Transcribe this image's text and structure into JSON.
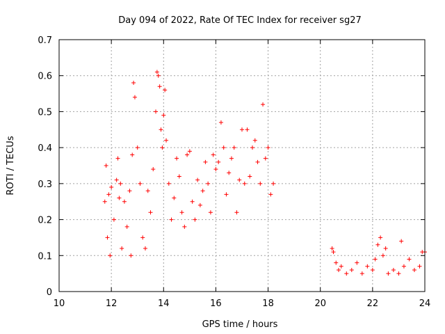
{
  "chart_data": {
    "type": "scatter",
    "title": "Day 094 of 2022, Rate Of TEC Index for receiver sg27",
    "xlabel": "GPS time / hours",
    "ylabel": "ROTI / TECUs",
    "xlim": [
      10,
      24
    ],
    "ylim": [
      0,
      0.7
    ],
    "x_ticks": [
      "10",
      "12",
      "14",
      "16",
      "18",
      "20",
      "22",
      "24"
    ],
    "y_ticks": [
      "0",
      "0.1",
      "0.2",
      "0.3",
      "0.4",
      "0.5",
      "0.6",
      "0.7"
    ],
    "grid": true,
    "marker": "plus",
    "color": "#ff0000",
    "series": [
      {
        "x": [
          11.75,
          11.8,
          11.85,
          11.9,
          11.95,
          12.0,
          12.1,
          12.2,
          12.25,
          12.3,
          12.35,
          12.4,
          12.5,
          12.6,
          12.7,
          12.75,
          12.8,
          12.85,
          12.9,
          13.0,
          13.1,
          13.2,
          13.3,
          13.4,
          13.5,
          13.6,
          13.7,
          13.75,
          13.8,
          13.85,
          13.9,
          13.95,
          14.0,
          14.05,
          14.1,
          14.2,
          14.3,
          14.4,
          14.5,
          14.6,
          14.7,
          14.8,
          14.9,
          15.0,
          15.1,
          15.2,
          15.3,
          15.4,
          15.5,
          15.6,
          15.7,
          15.8,
          15.9,
          16.0,
          16.1,
          16.2,
          16.3,
          16.4,
          16.5,
          16.6,
          16.7,
          16.8,
          16.9,
          17.0,
          17.1,
          17.2,
          17.3,
          17.4,
          17.5,
          17.6,
          17.7,
          17.8,
          17.9,
          18.0,
          18.1,
          18.2,
          20.45,
          20.5,
          20.6,
          20.7,
          20.8,
          21.0,
          21.2,
          21.4,
          21.6,
          21.8,
          22.0,
          22.1,
          22.2,
          22.3,
          22.4,
          22.5,
          22.6,
          22.8,
          23.0,
          23.1,
          23.2,
          23.4,
          23.6,
          23.8,
          23.9,
          24.0
        ],
        "y": [
          0.25,
          0.35,
          0.15,
          0.27,
          0.1,
          0.29,
          0.2,
          0.31,
          0.37,
          0.26,
          0.3,
          0.12,
          0.25,
          0.18,
          0.28,
          0.1,
          0.38,
          0.58,
          0.54,
          0.4,
          0.3,
          0.15,
          0.12,
          0.28,
          0.22,
          0.34,
          0.5,
          0.61,
          0.6,
          0.57,
          0.45,
          0.4,
          0.49,
          0.56,
          0.42,
          0.3,
          0.2,
          0.26,
          0.37,
          0.32,
          0.22,
          0.18,
          0.38,
          0.39,
          0.25,
          0.2,
          0.31,
          0.24,
          0.28,
          0.36,
          0.3,
          0.22,
          0.38,
          0.34,
          0.36,
          0.47,
          0.4,
          0.27,
          0.33,
          0.37,
          0.4,
          0.22,
          0.31,
          0.45,
          0.3,
          0.45,
          0.32,
          0.4,
          0.42,
          0.36,
          0.3,
          0.52,
          0.37,
          0.4,
          0.27,
          0.3,
          0.12,
          0.11,
          0.08,
          0.06,
          0.07,
          0.05,
          0.06,
          0.08,
          0.05,
          0.07,
          0.06,
          0.09,
          0.13,
          0.15,
          0.1,
          0.12,
          0.05,
          0.06,
          0.05,
          0.14,
          0.07,
          0.09,
          0.06,
          0.07,
          0.11,
          0.11
        ]
      }
    ]
  }
}
